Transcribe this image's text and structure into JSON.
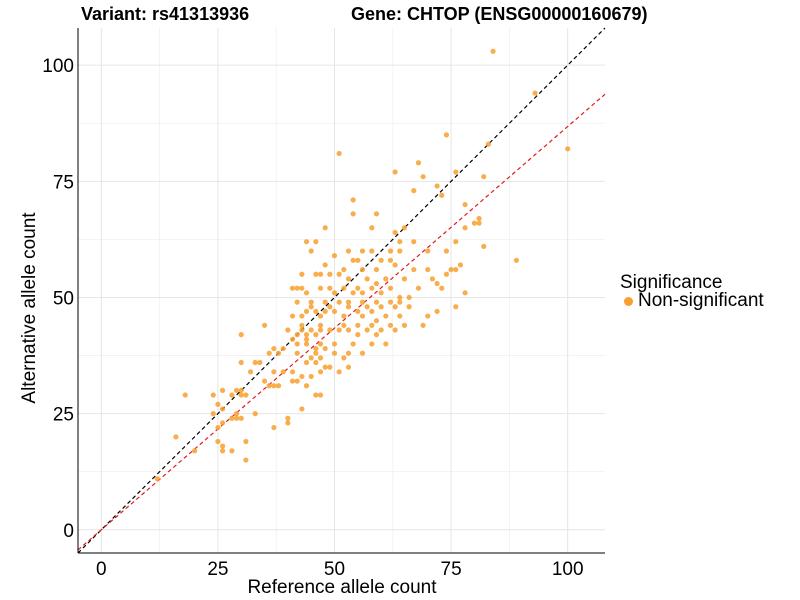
{
  "chart_data": {
    "type": "scatter",
    "title_left": "Variant: rs41313936",
    "title_right": "Gene: CHTOP (ENSG00000160679)",
    "xlabel": "Reference allele count",
    "ylabel": "Alternative allele count",
    "xlim": [
      -5,
      108
    ],
    "ylim": [
      -5,
      108
    ],
    "xticks": [
      0,
      25,
      50,
      75,
      100
    ],
    "yticks": [
      0,
      25,
      50,
      75,
      100
    ],
    "grid": true,
    "legend": {
      "position": "right",
      "title": "Significance",
      "items": [
        {
          "label": "Non-significant",
          "color": "#F7A02E"
        }
      ]
    },
    "reference_lines": [
      {
        "name": "identity",
        "slope": 1.0,
        "color": "#000000",
        "dash": true
      },
      {
        "name": "fit",
        "slope": 0.868,
        "color": "#E41A1C",
        "dash": true
      }
    ],
    "series": [
      {
        "color": "#F7A02E",
        "points": [
          [
            84,
            103
          ],
          [
            93,
            94
          ],
          [
            100,
            82
          ],
          [
            83,
            83
          ],
          [
            74,
            85
          ],
          [
            51,
            81
          ],
          [
            63,
            77
          ],
          [
            68,
            79
          ],
          [
            76,
            77
          ],
          [
            69,
            76
          ],
          [
            82,
            76
          ],
          [
            72,
            74
          ],
          [
            73,
            72
          ],
          [
            67,
            73
          ],
          [
            54,
            71
          ],
          [
            54,
            68
          ],
          [
            59,
            68
          ],
          [
            78,
            70
          ],
          [
            80,
            66
          ],
          [
            81,
            67
          ],
          [
            78,
            65
          ],
          [
            81,
            66
          ],
          [
            58,
            65
          ],
          [
            48,
            65
          ],
          [
            65,
            65
          ],
          [
            63,
            64
          ],
          [
            67,
            62
          ],
          [
            64,
            62
          ],
          [
            76,
            62
          ],
          [
            82,
            61
          ],
          [
            44,
            62
          ],
          [
            46,
            62
          ],
          [
            45,
            60
          ],
          [
            53,
            60
          ],
          [
            56,
            60
          ],
          [
            58,
            60
          ],
          [
            62,
            60
          ],
          [
            64,
            60
          ],
          [
            70,
            60
          ],
          [
            74,
            60
          ],
          [
            50,
            59
          ],
          [
            54,
            58
          ],
          [
            55,
            58
          ],
          [
            60,
            58
          ],
          [
            62,
            58
          ],
          [
            63,
            57
          ],
          [
            89,
            58
          ],
          [
            77,
            57
          ],
          [
            48,
            57
          ],
          [
            52,
            56
          ],
          [
            56,
            56
          ],
          [
            59,
            56
          ],
          [
            67,
            56
          ],
          [
            70,
            56
          ],
          [
            75,
            56
          ],
          [
            76,
            56
          ],
          [
            43,
            55
          ],
          [
            46,
            55
          ],
          [
            47,
            55
          ],
          [
            49,
            55
          ],
          [
            51,
            55
          ],
          [
            53,
            54
          ],
          [
            57,
            54
          ],
          [
            59,
            53
          ],
          [
            61,
            54
          ],
          [
            65,
            54
          ],
          [
            71,
            54
          ],
          [
            72,
            53
          ],
          [
            74,
            55
          ],
          [
            41,
            52
          ],
          [
            42,
            52
          ],
          [
            43,
            52
          ],
          [
            47,
            52
          ],
          [
            49,
            52
          ],
          [
            52,
            52
          ],
          [
            55,
            52
          ],
          [
            58,
            52
          ],
          [
            62,
            52
          ],
          [
            68,
            52
          ],
          [
            73,
            52
          ],
          [
            44,
            51
          ],
          [
            50,
            51
          ],
          [
            54,
            51
          ],
          [
            56,
            51
          ],
          [
            60,
            51
          ],
          [
            64,
            50
          ],
          [
            66,
            50
          ],
          [
            78,
            51
          ],
          [
            42,
            49
          ],
          [
            45,
            49
          ],
          [
            48,
            49
          ],
          [
            51,
            49
          ],
          [
            53,
            49
          ],
          [
            56,
            49
          ],
          [
            59,
            49
          ],
          [
            62,
            49
          ],
          [
            64,
            49
          ],
          [
            63,
            48
          ],
          [
            45,
            48
          ],
          [
            49,
            48
          ],
          [
            53,
            48
          ],
          [
            57,
            48
          ],
          [
            60,
            48
          ],
          [
            66,
            48
          ],
          [
            72,
            47
          ],
          [
            76,
            48
          ],
          [
            44,
            47
          ],
          [
            46,
            47
          ],
          [
            48,
            47
          ],
          [
            50,
            47
          ],
          [
            55,
            47
          ],
          [
            58,
            47
          ],
          [
            61,
            46
          ],
          [
            64,
            46
          ],
          [
            70,
            46
          ],
          [
            41,
            46
          ],
          [
            43,
            46
          ],
          [
            47,
            46
          ],
          [
            52,
            46
          ],
          [
            56,
            46
          ],
          [
            59,
            45
          ],
          [
            62,
            44
          ],
          [
            65,
            44
          ],
          [
            69,
            44
          ],
          [
            43,
            44
          ],
          [
            47,
            44
          ],
          [
            52,
            44
          ],
          [
            55,
            44
          ],
          [
            58,
            44
          ],
          [
            35,
            44
          ],
          [
            40,
            43
          ],
          [
            43,
            43
          ],
          [
            45,
            43
          ],
          [
            47,
            43
          ],
          [
            49,
            43
          ],
          [
            51,
            43
          ],
          [
            53,
            43
          ],
          [
            57,
            43
          ],
          [
            60,
            43
          ],
          [
            63,
            43
          ],
          [
            42,
            42
          ],
          [
            44,
            42
          ],
          [
            46,
            42
          ],
          [
            30,
            42
          ],
          [
            55,
            42
          ],
          [
            59,
            42
          ],
          [
            41,
            41
          ],
          [
            44,
            41
          ],
          [
            47,
            40
          ],
          [
            50,
            40
          ],
          [
            54,
            40
          ],
          [
            58,
            40
          ],
          [
            61,
            40
          ],
          [
            42,
            40
          ],
          [
            44,
            40
          ],
          [
            37,
            39
          ],
          [
            39,
            39
          ],
          [
            46,
            39
          ],
          [
            48,
            39
          ],
          [
            53,
            38
          ],
          [
            56,
            38
          ],
          [
            36,
            38
          ],
          [
            38,
            38
          ],
          [
            42,
            38
          ],
          [
            46,
            38
          ],
          [
            50,
            38
          ],
          [
            52,
            37
          ],
          [
            45,
            37
          ],
          [
            47,
            37
          ],
          [
            33,
            36
          ],
          [
            30,
            36
          ],
          [
            34,
            36
          ],
          [
            44,
            36
          ],
          [
            46,
            36
          ],
          [
            48,
            35
          ],
          [
            53,
            35
          ],
          [
            49,
            35
          ],
          [
            47,
            34
          ],
          [
            51,
            34
          ],
          [
            37,
            34
          ],
          [
            39,
            34
          ],
          [
            41,
            34
          ],
          [
            32,
            34
          ],
          [
            45,
            33
          ],
          [
            43,
            33
          ],
          [
            35,
            32
          ],
          [
            36,
            31
          ],
          [
            37,
            31
          ],
          [
            41,
            32
          ],
          [
            42,
            32
          ],
          [
            44,
            31
          ],
          [
            26,
            30
          ],
          [
            29,
            30
          ],
          [
            30,
            30
          ],
          [
            38,
            31
          ],
          [
            46,
            29
          ],
          [
            47,
            29
          ],
          [
            31,
            29
          ],
          [
            18,
            29
          ],
          [
            28,
            29
          ],
          [
            30,
            29
          ],
          [
            24,
            29
          ],
          [
            25,
            27
          ],
          [
            26,
            26
          ],
          [
            29,
            25
          ],
          [
            33,
            25
          ],
          [
            43,
            26
          ],
          [
            24,
            25
          ],
          [
            28,
            24
          ],
          [
            29,
            24
          ],
          [
            30,
            24
          ],
          [
            40,
            24
          ],
          [
            40,
            23
          ],
          [
            26,
            23
          ],
          [
            25,
            22
          ],
          [
            37,
            22
          ],
          [
            16,
            20
          ],
          [
            31,
            19
          ],
          [
            25,
            19
          ],
          [
            26,
            18
          ],
          [
            20,
            17
          ],
          [
            28,
            17
          ],
          [
            26,
            17
          ],
          [
            31,
            15
          ],
          [
            12,
            11
          ]
        ]
      }
    ]
  }
}
